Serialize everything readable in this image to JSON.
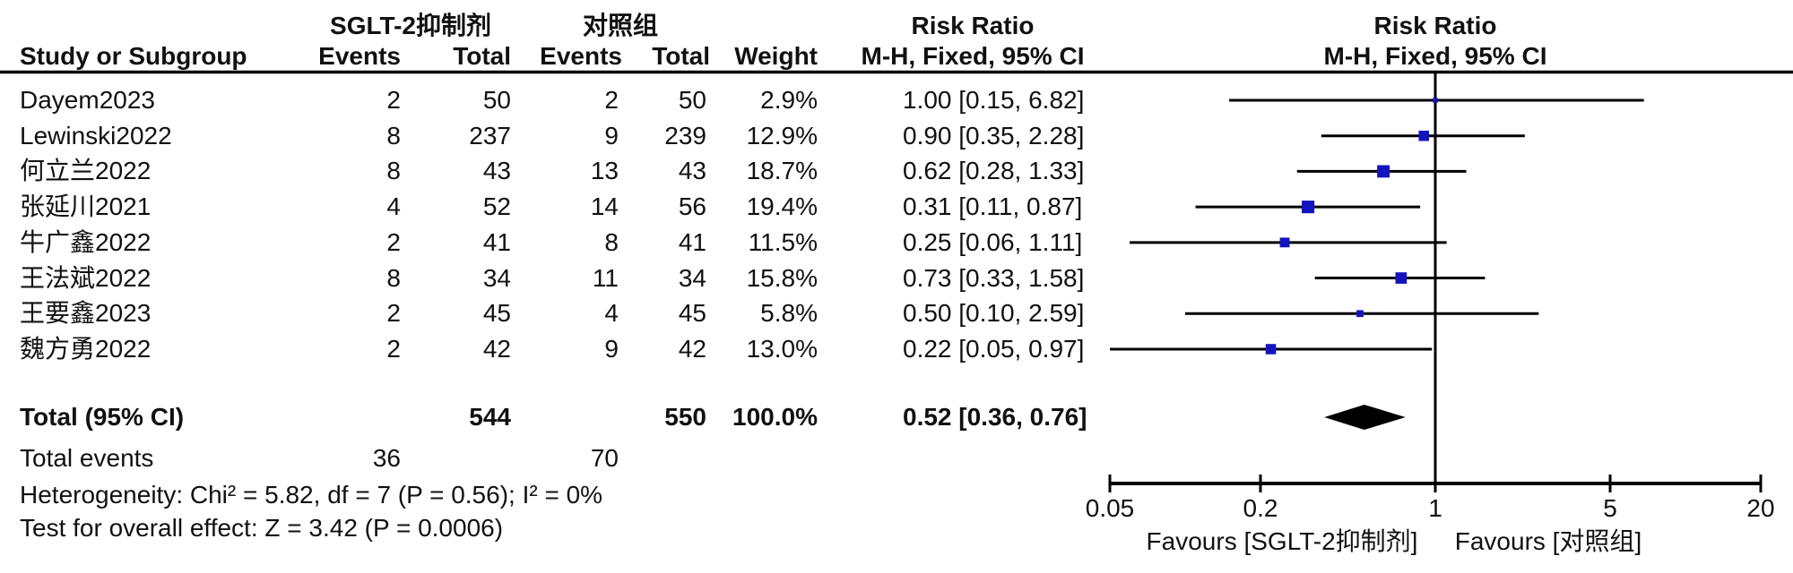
{
  "table": {
    "group1_header": "SGLT-2抑制剂",
    "group2_header": "对照组",
    "col_study": "Study or Subgroup",
    "col_events": "Events",
    "col_total": "Total",
    "col_weight": "Weight",
    "rr_header": {
      "line1": "Risk Ratio",
      "line2": "M-H, Fixed, 95% CI"
    },
    "plot_header": {
      "line1": "Risk Ratio",
      "line2": "M-H, Fixed, 95% CI"
    },
    "rows": [
      {
        "study": "Dayem2023",
        "e1": "2",
        "t1": "50",
        "e2": "2",
        "t2": "50",
        "weight": "2.9%",
        "ci_text": "1.00 [0.15, 6.82]",
        "rr": 1.0,
        "lo": 0.15,
        "hi": 6.82,
        "w": 2.9
      },
      {
        "study": "Lewinski2022",
        "e1": "8",
        "t1": "237",
        "e2": "9",
        "t2": "239",
        "weight": "12.9%",
        "ci_text": "0.90 [0.35, 2.28]",
        "rr": 0.9,
        "lo": 0.35,
        "hi": 2.28,
        "w": 12.9
      },
      {
        "study": "何立兰2022",
        "e1": "8",
        "t1": "43",
        "e2": "13",
        "t2": "43",
        "weight": "18.7%",
        "ci_text": "0.62 [0.28, 1.33]",
        "rr": 0.62,
        "lo": 0.28,
        "hi": 1.33,
        "w": 18.7
      },
      {
        "study": "张延川2021",
        "e1": "4",
        "t1": "52",
        "e2": "14",
        "t2": "56",
        "weight": "19.4%",
        "ci_text": "0.31 [0.11, 0.87]",
        "rr": 0.31,
        "lo": 0.11,
        "hi": 0.87,
        "w": 19.4
      },
      {
        "study": "牛广鑫2022",
        "e1": "2",
        "t1": "41",
        "e2": "8",
        "t2": "41",
        "weight": "11.5%",
        "ci_text": "0.25 [0.06, 1.11]",
        "rr": 0.25,
        "lo": 0.06,
        "hi": 1.11,
        "w": 11.5
      },
      {
        "study": "王法斌2022",
        "e1": "8",
        "t1": "34",
        "e2": "11",
        "t2": "34",
        "weight": "15.8%",
        "ci_text": "0.73 [0.33, 1.58]",
        "rr": 0.73,
        "lo": 0.33,
        "hi": 1.58,
        "w": 15.8
      },
      {
        "study": "王要鑫2023",
        "e1": "2",
        "t1": "45",
        "e2": "4",
        "t2": "45",
        "weight": "5.8%",
        "ci_text": "0.50 [0.10, 2.59]",
        "rr": 0.5,
        "lo": 0.1,
        "hi": 2.59,
        "w": 5.8
      },
      {
        "study": "魏方勇2022",
        "e1": "2",
        "t1": "42",
        "e2": "9",
        "t2": "42",
        "weight": "13.0%",
        "ci_text": "0.22 [0.05, 0.97]",
        "rr": 0.22,
        "lo": 0.05,
        "hi": 0.97,
        "w": 13.0
      }
    ],
    "total": {
      "label": "Total (95% CI)",
      "t1": "544",
      "t2": "550",
      "weight": "100.0%",
      "ci_text": "0.52 [0.36, 0.76]",
      "rr": 0.52,
      "lo": 0.36,
      "hi": 0.76
    },
    "total_events": {
      "label": "Total events",
      "e1": "36",
      "e2": "70"
    },
    "heterogeneity": "Heterogeneity: Chi² = 5.82, df = 7 (P = 0.56); I² = 0%",
    "overall_effect": "Test for overall effect: Z = 3.42 (P = 0.0006)"
  },
  "plot": {
    "tick_labels": [
      "0.05",
      "0.2",
      "1",
      "5",
      "20"
    ],
    "tick_values": [
      0.05,
      0.2,
      1,
      5,
      20
    ],
    "favours_left": "Favours [SGLT-2抑制剂]",
    "favours_right": "Favours [对照组]",
    "marker_color": "#1414be",
    "line_color": "#000000",
    "diamond_color": "#000000"
  },
  "chart_data": {
    "type": "scatter",
    "subtype": "forest-plot",
    "title": "Risk Ratio, M-H, Fixed, 95% CI",
    "x_scale": "log",
    "x_range": [
      0.05,
      20
    ],
    "x_ticks": [
      0.05,
      0.2,
      1,
      5,
      20
    ],
    "studies": [
      "Dayem2023",
      "Lewinski2022",
      "何立兰2022",
      "张延川2021",
      "牛广鑫2022",
      "王法斌2022",
      "王要鑫2023",
      "魏方勇2022"
    ],
    "events_treatment": [
      2,
      8,
      8,
      4,
      2,
      8,
      2,
      2
    ],
    "total_treatment": [
      50,
      237,
      43,
      52,
      41,
      34,
      45,
      42
    ],
    "events_control": [
      2,
      9,
      13,
      14,
      8,
      11,
      4,
      9
    ],
    "total_control": [
      50,
      239,
      43,
      56,
      41,
      34,
      45,
      42
    ],
    "weights_pct": [
      2.9,
      12.9,
      18.7,
      19.4,
      11.5,
      15.8,
      5.8,
      13.0
    ],
    "rr": [
      1.0,
      0.9,
      0.62,
      0.31,
      0.25,
      0.73,
      0.5,
      0.22
    ],
    "ci_low": [
      0.15,
      0.35,
      0.28,
      0.11,
      0.06,
      0.33,
      0.1,
      0.05
    ],
    "ci_high": [
      6.82,
      2.28,
      1.33,
      0.87,
      1.11,
      1.58,
      2.59,
      0.97
    ],
    "overall": {
      "rr": 0.52,
      "ci_low": 0.36,
      "ci_high": 0.76,
      "total_treatment": 544,
      "total_control": 550,
      "weight_pct": 100.0,
      "total_events_treatment": 36,
      "total_events_control": 70
    },
    "heterogeneity": {
      "chi2": 5.82,
      "df": 7,
      "p": 0.56,
      "i2_pct": 0
    },
    "overall_effect": {
      "z": 3.42,
      "p": 0.0006
    },
    "favours_left": "Favours [SGLT-2抑制剂]",
    "favours_right": "Favours [对照组]"
  }
}
